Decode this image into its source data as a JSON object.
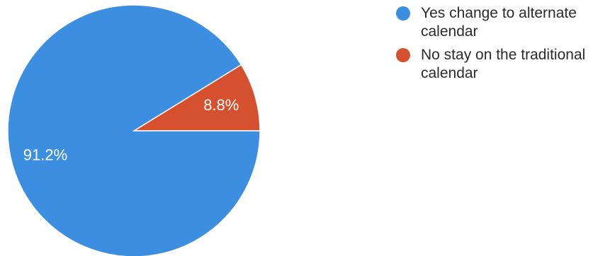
{
  "chart_data": {
    "type": "pie",
    "title": "",
    "legend_position": "top-right",
    "start_direction": "east",
    "slices": [
      {
        "label": "Yes change to alternate calendar",
        "value": 91.2,
        "display": "91.2%",
        "color": "#3c8ee0"
      },
      {
        "label": "No stay on the traditional calendar",
        "value": 8.8,
        "display": "8.8%",
        "color": "#d5502e"
      }
    ]
  }
}
